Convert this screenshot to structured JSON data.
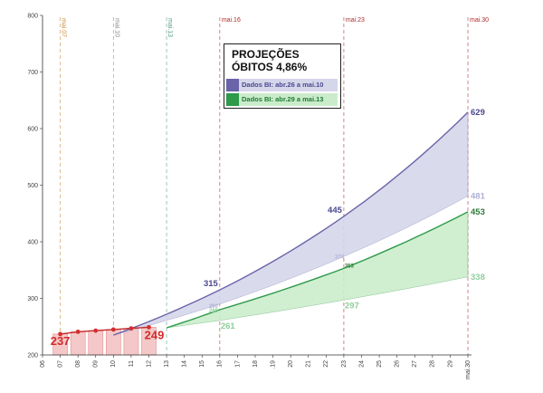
{
  "chart_data": {
    "type": "area",
    "title": "PROJEÇÕES ÓBITOS 4,86%",
    "title_lines": [
      "PROJEÇÕES",
      "ÓBITOS 4,86%"
    ],
    "x_ticks": [
      "06",
      "07",
      "08",
      "09",
      "10",
      "11",
      "12",
      "13",
      "14",
      "15",
      "16",
      "17",
      "18",
      ".19",
      "20",
      "21",
      "22",
      "23",
      "24",
      "25",
      "26",
      "27",
      "28",
      "29",
      "mai.30"
    ],
    "ylim": [
      200,
      800
    ],
    "y_ticks": [
      200,
      300,
      400,
      500,
      600,
      700,
      800
    ],
    "grid": false,
    "legend": "top-center",
    "markers": [
      {
        "label": "mai.07",
        "x": 7,
        "color": "#c98a3a"
      },
      {
        "label": "mai.10",
        "x": 10,
        "color": "#8a8a8a"
      },
      {
        "label": "mai.13",
        "x": 13,
        "color": "#5a9a88"
      },
      {
        "label": "mai.16",
        "x": 16,
        "color": "#b02a2a"
      },
      {
        "label": "mai.23",
        "x": 23,
        "color": "#b02a2a"
      },
      {
        "label": "mai.30",
        "x": 30,
        "color": "#b02a2a"
      }
    ],
    "bars": {
      "x": [
        7,
        8,
        9,
        10,
        11,
        12
      ],
      "values": [
        237,
        241,
        243,
        245,
        247,
        249
      ]
    },
    "observed": {
      "x": [
        7,
        8,
        9,
        10,
        11,
        12
      ],
      "values": [
        237,
        241,
        243,
        245,
        247,
        249
      ]
    },
    "series": [
      {
        "name": "Dados BI: abr.26 a mai.10",
        "color": "#6b64a8",
        "fill": "#d5d6ea",
        "upper": {
          "x": [
            10,
            16,
            23,
            30
          ],
          "values": [
            235,
            315,
            445,
            629
          ]
        },
        "lower": {
          "x": [
            10,
            16,
            23,
            30
          ],
          "values": [
            235,
            290,
            374,
            481
          ]
        }
      },
      {
        "name": "Dados BI: abr.29 a mai.13",
        "color": "#2e9a4a",
        "fill": "#cbeccb",
        "upper": {
          "x": [
            13,
            16,
            23,
            30
          ],
          "values": [
            248,
            280,
            353,
            453
          ]
        },
        "lower": {
          "x": [
            13,
            16,
            23,
            30
          ],
          "values": [
            248,
            261,
            297,
            338
          ]
        }
      }
    ],
    "annotations": [
      {
        "text": "237",
        "x": 7,
        "y": 237,
        "color": "#d42a2a",
        "size": "big"
      },
      {
        "text": "249",
        "x": 12,
        "y": 249,
        "color": "#d42a2a",
        "size": "big"
      },
      {
        "text": "315",
        "x": 16,
        "y": 315,
        "color": "#4a4890",
        "size": "mid"
      },
      {
        "text": "290",
        "x": 16,
        "y": 290,
        "color": "#aeb0d6",
        "size": "small"
      },
      {
        "text": "280",
        "x": 16,
        "y": 280,
        "color": "#8fce9a",
        "size": "small"
      },
      {
        "text": "261",
        "x": 16,
        "y": 261,
        "color": "#8fce9a",
        "size": "mid"
      },
      {
        "text": "445",
        "x": 23,
        "y": 445,
        "color": "#4a4890",
        "size": "mid"
      },
      {
        "text": "374",
        "x": 23,
        "y": 374,
        "color": "#aeb0d6",
        "size": "small"
      },
      {
        "text": "353",
        "x": 23,
        "y": 353,
        "color": "#2e7a3a",
        "size": "small"
      },
      {
        "text": "297",
        "x": 23,
        "y": 297,
        "color": "#8fce9a",
        "size": "mid"
      },
      {
        "text": "629",
        "x": 30,
        "y": 629,
        "color": "#4a4890",
        "size": "mid"
      },
      {
        "text": "481",
        "x": 30,
        "y": 481,
        "color": "#aeb0d6",
        "size": "mid"
      },
      {
        "text": "453",
        "x": 30,
        "y": 453,
        "color": "#2e7a3a",
        "size": "mid"
      },
      {
        "text": "338",
        "x": 30,
        "y": 338,
        "color": "#8fce9a",
        "size": "mid"
      }
    ]
  }
}
